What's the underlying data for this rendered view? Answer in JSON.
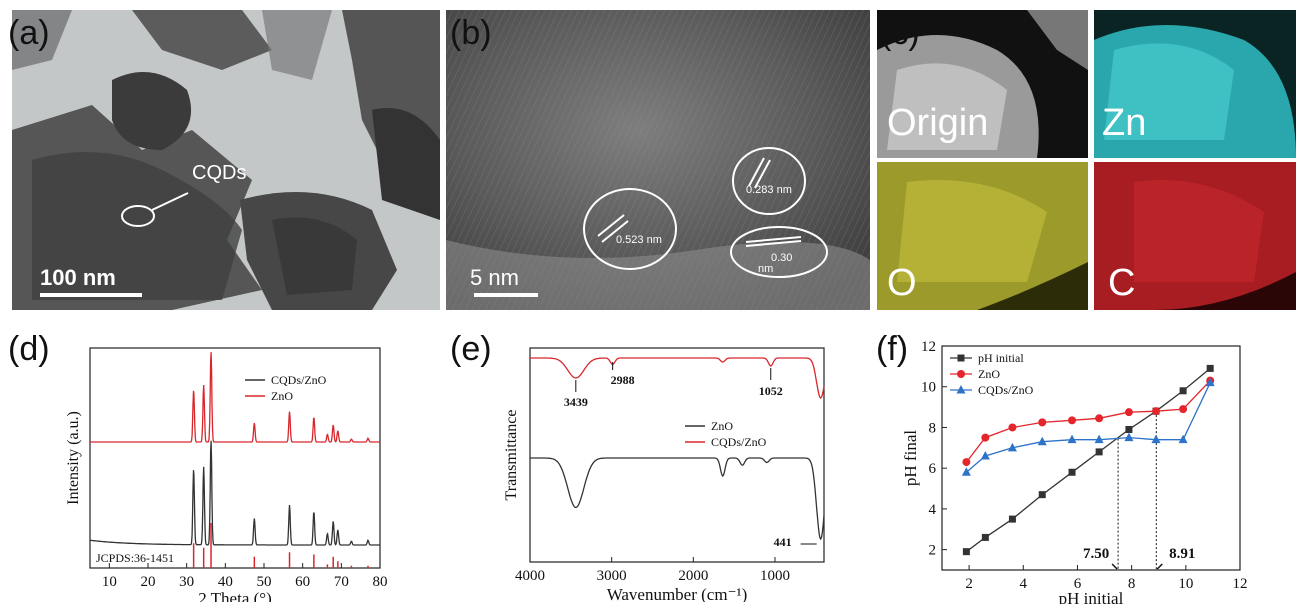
{
  "panels": {
    "a": {
      "label": "(a)",
      "scale_bar": "100 nm",
      "annotation": "CQDs"
    },
    "b": {
      "label": "(b)",
      "scale_bar": "5 nm",
      "spacings": [
        "0.523 nm",
        "0.283 nm",
        "0.30",
        "nm"
      ]
    },
    "c": {
      "label": "(c)",
      "maps": [
        "Origin",
        "Zn",
        "O",
        "C"
      ]
    },
    "d": {
      "label": "(d)"
    },
    "e": {
      "label": "(e)"
    },
    "f": {
      "label": "(f)"
    }
  },
  "chart_data": [
    {
      "id": "d",
      "type": "line",
      "xlabel": "2 Theta (°)",
      "ylabel": "Intensity (a.u.)",
      "xlim": [
        5,
        80
      ],
      "xticks": [
        10,
        20,
        30,
        40,
        50,
        60,
        70,
        80
      ],
      "legend": {
        "placement": "top-right",
        "entries": [
          "CQDs/ZnO",
          "ZnO"
        ]
      },
      "annotation": "JCPDS:36-1451",
      "series": [
        {
          "name": "ZnO",
          "color": "#d9262c",
          "baseline": 1.0,
          "peaks": [
            [
              31.8,
              0.55
            ],
            [
              34.4,
              0.6
            ],
            [
              36.3,
              0.95
            ],
            [
              47.5,
              0.2
            ],
            [
              56.6,
              0.32
            ],
            [
              62.9,
              0.26
            ],
            [
              66.4,
              0.08
            ],
            [
              67.9,
              0.18
            ],
            [
              69.1,
              0.12
            ],
            [
              72.6,
              0.03
            ],
            [
              76.9,
              0.04
            ]
          ]
        },
        {
          "name": "CQDs/ZnO",
          "color": "#333333",
          "baseline": 0.0,
          "peaks": [
            [
              31.8,
              0.8
            ],
            [
              34.4,
              0.82
            ],
            [
              36.3,
              1.1
            ],
            [
              47.5,
              0.28
            ],
            [
              56.6,
              0.42
            ],
            [
              62.9,
              0.35
            ],
            [
              66.4,
              0.12
            ],
            [
              67.9,
              0.25
            ],
            [
              69.1,
              0.16
            ],
            [
              72.6,
              0.04
            ],
            [
              76.9,
              0.05
            ]
          ]
        }
      ],
      "reference_lines": [
        31.8,
        34.4,
        36.3,
        47.5,
        56.6,
        62.9,
        66.4,
        67.9,
        69.1,
        72.6,
        76.9
      ],
      "reference_heights": [
        0.55,
        0.45,
        1.0,
        0.25,
        0.35,
        0.3,
        0.08,
        0.25,
        0.15,
        0.05,
        0.05
      ]
    },
    {
      "id": "e",
      "type": "line",
      "xlabel": "Wavenumber (cm⁻¹)",
      "ylabel": "Transmittance",
      "xlim": [
        4000,
        400
      ],
      "xticks": [
        4000,
        3000,
        2000,
        1000
      ],
      "legend": {
        "placement": "center-right",
        "entries": [
          "ZnO",
          "CQDs/ZnO"
        ]
      },
      "annotations": [
        "3439",
        "2988",
        "1052",
        "441"
      ],
      "series": [
        {
          "name": "CQDs/ZnO",
          "color": "#d9262c",
          "baseline": 1.0,
          "dips": [
            [
              3439,
              0.25
            ],
            [
              2988,
              0.08
            ],
            [
              1640,
              0.05
            ],
            [
              1052,
              0.1
            ],
            [
              441,
              0.5
            ]
          ]
        },
        {
          "name": "ZnO",
          "color": "#333333",
          "baseline": 0.0,
          "dips": [
            [
              3439,
              0.55
            ],
            [
              1640,
              0.2
            ],
            [
              1400,
              0.08
            ],
            [
              1100,
              0.05
            ],
            [
              441,
              0.9
            ]
          ]
        }
      ]
    },
    {
      "id": "f",
      "type": "line",
      "xlabel": "pH initial",
      "ylabel": "pH final",
      "xlim": [
        1,
        12
      ],
      "ylim": [
        1,
        12
      ],
      "xticks": [
        2,
        4,
        6,
        8,
        10,
        12
      ],
      "yticks": [
        2,
        4,
        6,
        8,
        10,
        12
      ],
      "legend": {
        "placement": "top-left",
        "entries": [
          "pH initial",
          "ZnO",
          "CQDs/ZnO"
        ]
      },
      "annotations": [
        "7.50",
        "8.91"
      ],
      "vlines": [
        7.5,
        8.91
      ],
      "series": [
        {
          "name": "pH initial",
          "color": "#333333",
          "marker": "square",
          "x": [
            1.9,
            2.6,
            3.6,
            4.7,
            5.8,
            6.8,
            7.9,
            8.9,
            9.9,
            10.9
          ],
          "y": [
            1.9,
            2.6,
            3.5,
            4.7,
            5.8,
            6.8,
            7.9,
            8.8,
            9.8,
            10.9
          ]
        },
        {
          "name": "ZnO",
          "color": "#e5252c",
          "marker": "circle",
          "x": [
            1.9,
            2.6,
            3.6,
            4.7,
            5.8,
            6.8,
            7.9,
            8.9,
            9.9,
            10.9
          ],
          "y": [
            6.3,
            7.5,
            8.0,
            8.25,
            8.35,
            8.45,
            8.75,
            8.8,
            8.9,
            10.3
          ]
        },
        {
          "name": "CQDs/ZnO",
          "color": "#2f73c9",
          "marker": "triangle",
          "x": [
            1.9,
            2.6,
            3.6,
            4.7,
            5.8,
            6.8,
            7.9,
            8.9,
            9.9,
            10.9
          ],
          "y": [
            5.8,
            6.6,
            7.0,
            7.3,
            7.4,
            7.4,
            7.5,
            7.4,
            7.4,
            10.2
          ]
        }
      ]
    }
  ]
}
